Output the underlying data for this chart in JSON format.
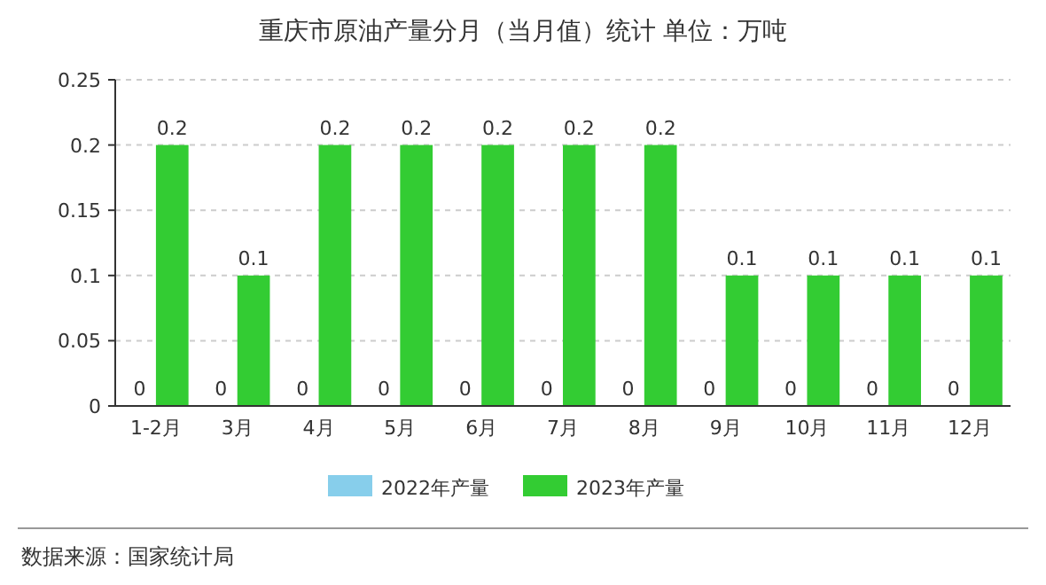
{
  "chart_data": {
    "type": "bar",
    "title": "重庆市原油产量分月（当月值）统计  单位：万吨",
    "categories": [
      "1-2月",
      "3月",
      "4月",
      "5月",
      "6月",
      "7月",
      "8月",
      "9月",
      "10月",
      "11月",
      "12月"
    ],
    "series": [
      {
        "name": "2022年产量",
        "color": "#87ceeb",
        "values": [
          0,
          0,
          0,
          0,
          0,
          0,
          0,
          0,
          0,
          0,
          0
        ]
      },
      {
        "name": "2023年产量",
        "color": "#33cc33",
        "values": [
          0.2,
          0.1,
          0.2,
          0.2,
          0.2,
          0.2,
          0.2,
          0.1,
          0.1,
          0.1,
          0.1
        ]
      }
    ],
    "ylim": [
      0,
      0.25
    ],
    "yticks": [
      0,
      0.05,
      0.1,
      0.15,
      0.2,
      0.25
    ],
    "grid": "y",
    "legend": "bottom",
    "data_labels": true,
    "annotations": [
      "数据来源：国家统计局"
    ]
  }
}
